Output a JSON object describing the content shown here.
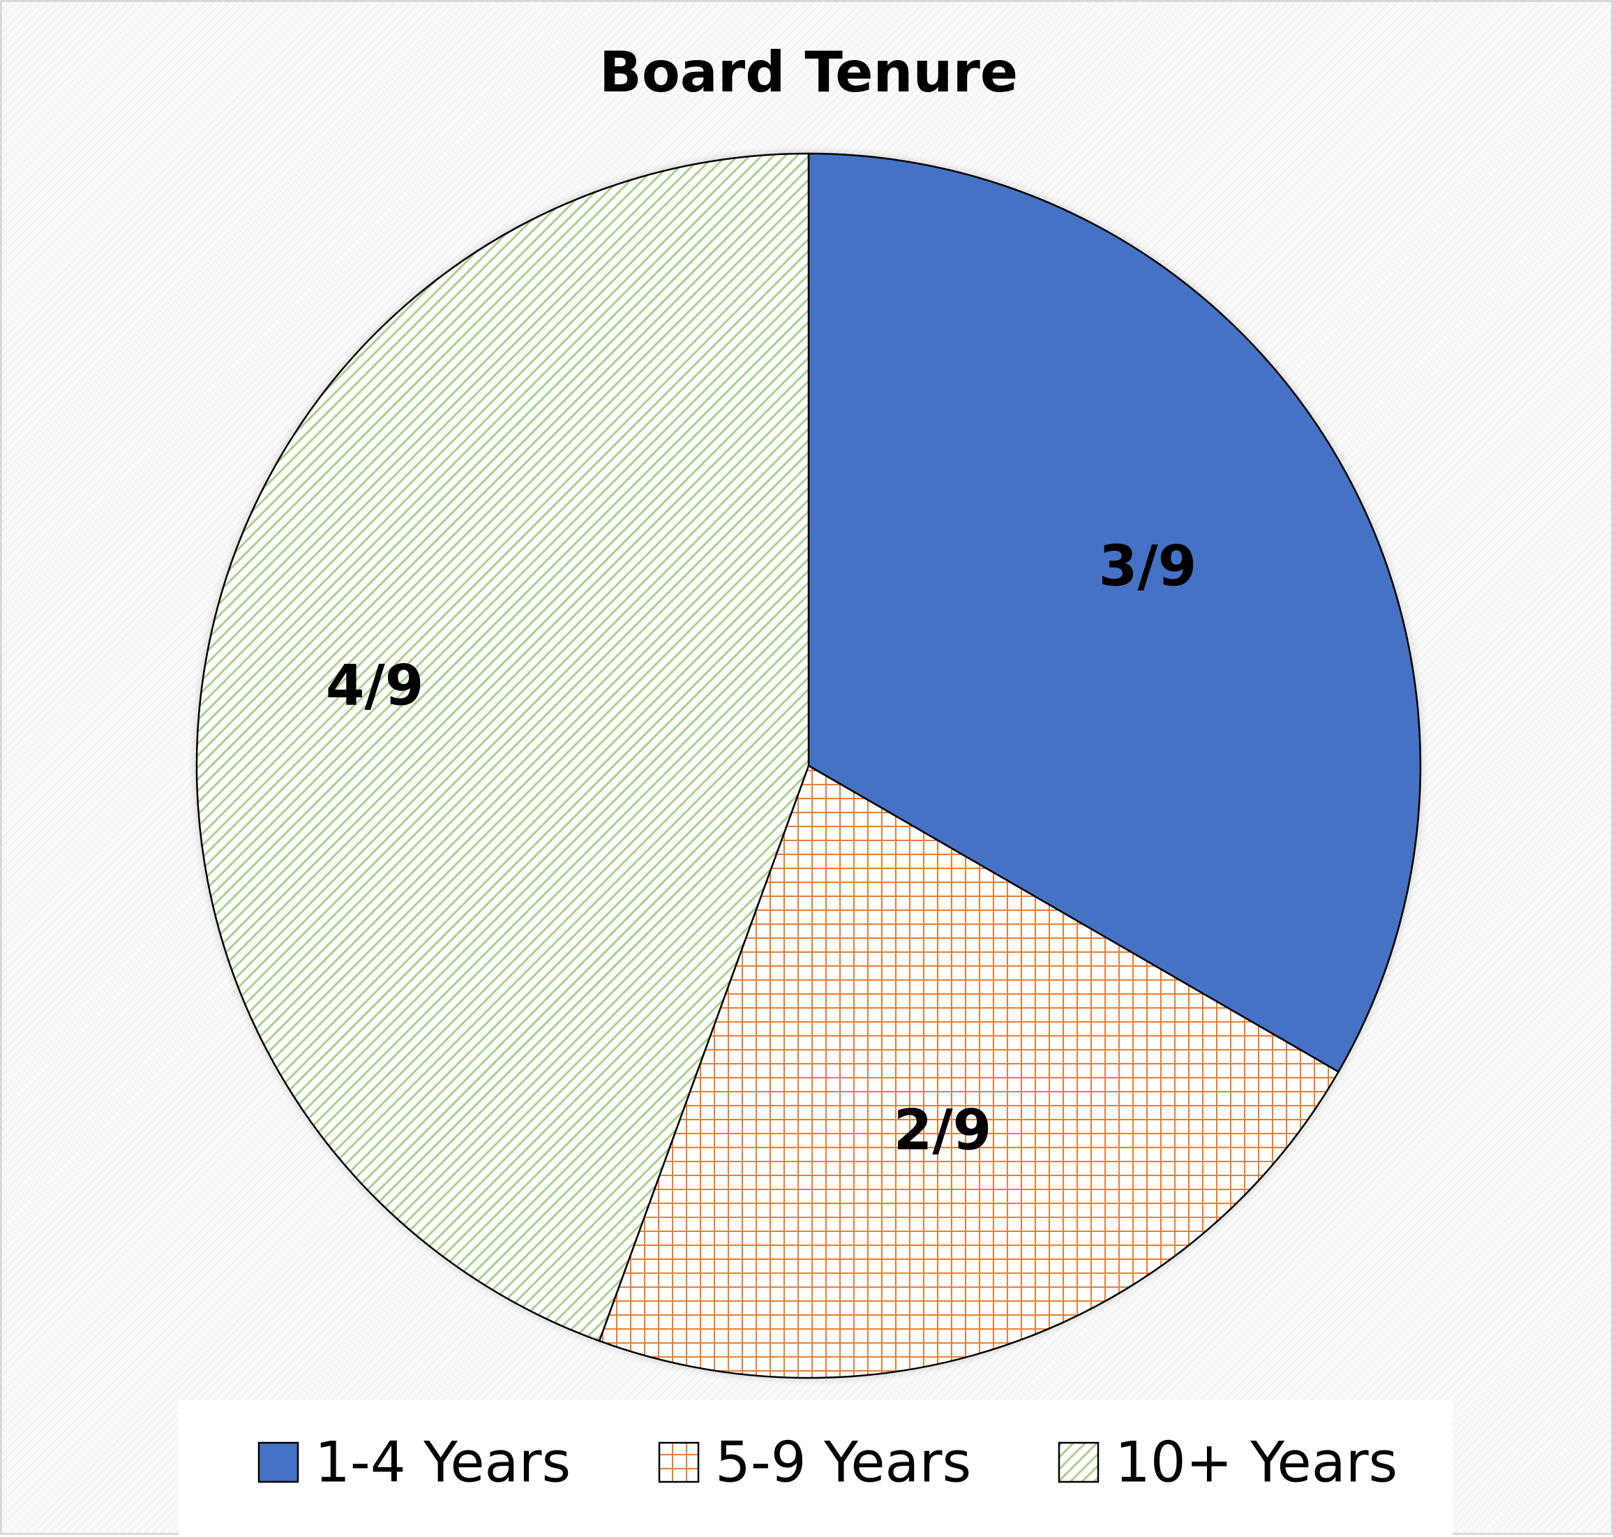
{
  "chart_data": {
    "type": "pie",
    "title": "Board Tenure",
    "categories": [
      "1-4 Years",
      "5-9 Years",
      "10+ Years"
    ],
    "values": [
      3,
      2,
      4
    ],
    "data_labels": [
      "3/9",
      "2/9",
      "4/9"
    ],
    "start_angle_deg": 0,
    "direction": "clockwise",
    "legend_position": "bottom",
    "slices": [
      {
        "name": "1-4 Years",
        "value": 3,
        "label": "3/9",
        "fill": "solid",
        "color": "#4472c4"
      },
      {
        "name": "5-9 Years",
        "value": 2,
        "label": "2/9",
        "fill": "grid-pattern",
        "color": "#ed7d31"
      },
      {
        "name": "10+ Years",
        "value": 4,
        "label": "4/9",
        "fill": "diagonal-pattern",
        "color": "#a9d18e"
      }
    ]
  }
}
